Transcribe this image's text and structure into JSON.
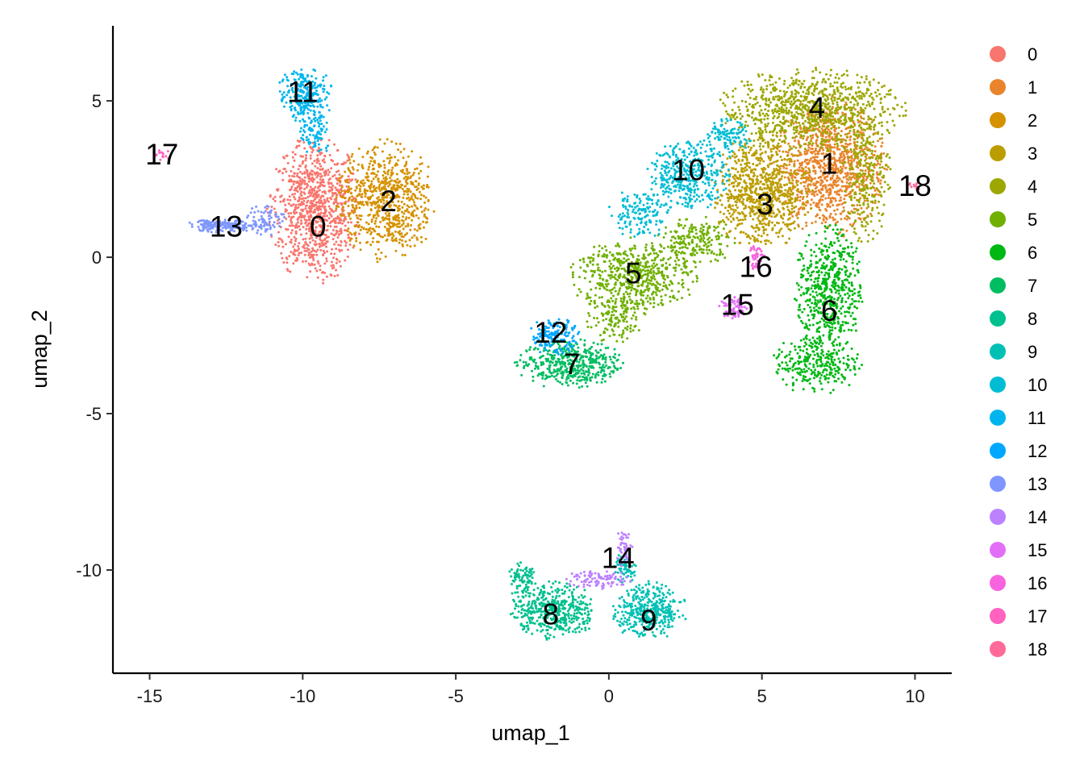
{
  "chart_data": {
    "type": "scatter",
    "xlabel": "umap_1",
    "ylabel": "umap_2",
    "xlim": [
      -16.2,
      11.2
    ],
    "ylim": [
      -13.3,
      7.4
    ],
    "x_ticks": [
      -15,
      -10,
      -5,
      0,
      5,
      10
    ],
    "x_tick_labels": [
      "-15",
      "-10",
      "-5",
      "0",
      "5",
      "10"
    ],
    "y_ticks": [
      5,
      0,
      -5,
      -10
    ],
    "y_tick_labels": [
      "5",
      "0",
      "-5",
      "-10"
    ],
    "grid": false,
    "legend_position": "right",
    "clusters": [
      {
        "name": "0",
        "color": "#F8766D",
        "label_x": -9.5,
        "label_y": 1.0,
        "blobs": [
          {
            "x": -9.6,
            "y": 1.5,
            "rx": 1.5,
            "ry": 2.3,
            "n": 900
          }
        ]
      },
      {
        "name": "1",
        "color": "#E9842C",
        "label_x": 7.2,
        "label_y": 3.0,
        "blobs": [
          {
            "x": 7.2,
            "y": 2.9,
            "rx": 1.8,
            "ry": 2.2,
            "n": 1000
          }
        ]
      },
      {
        "name": "2",
        "color": "#D69100",
        "label_x": -7.2,
        "label_y": 1.8,
        "blobs": [
          {
            "x": -7.3,
            "y": 1.8,
            "rx": 1.6,
            "ry": 1.9,
            "n": 700
          }
        ]
      },
      {
        "name": "3",
        "color": "#BC9D00",
        "label_x": 5.1,
        "label_y": 1.7,
        "blobs": [
          {
            "x": 5.0,
            "y": 2.1,
            "rx": 1.6,
            "ry": 1.8,
            "n": 800
          }
        ]
      },
      {
        "name": "4",
        "color": "#9CA700",
        "label_x": 6.8,
        "label_y": 4.8,
        "blobs": [
          {
            "x": 6.6,
            "y": 4.7,
            "rx": 3.0,
            "ry": 1.3,
            "n": 900
          },
          {
            "x": 8.4,
            "y": 2.5,
            "rx": 0.8,
            "ry": 2.0,
            "n": 250
          }
        ]
      },
      {
        "name": "5",
        "color": "#6FB000",
        "label_x": 0.8,
        "label_y": -0.5,
        "blobs": [
          {
            "x": 0.8,
            "y": -0.6,
            "rx": 2.0,
            "ry": 1.2,
            "n": 550
          },
          {
            "x": 2.8,
            "y": 0.5,
            "rx": 1.3,
            "ry": 0.8,
            "n": 200
          },
          {
            "x": 0.2,
            "y": -2.0,
            "rx": 1.0,
            "ry": 0.7,
            "n": 120
          }
        ]
      },
      {
        "name": "6",
        "color": "#00B813",
        "label_x": 7.2,
        "label_y": -1.7,
        "blobs": [
          {
            "x": 7.2,
            "y": -1.0,
            "rx": 1.1,
            "ry": 2.0,
            "n": 550
          },
          {
            "x": 6.8,
            "y": -3.4,
            "rx": 1.4,
            "ry": 1.0,
            "n": 300
          }
        ]
      },
      {
        "name": "7",
        "color": "#00BD61",
        "label_x": -1.2,
        "label_y": -3.4,
        "blobs": [
          {
            "x": -1.3,
            "y": -3.4,
            "rx": 1.7,
            "ry": 0.8,
            "n": 450
          }
        ]
      },
      {
        "name": "8",
        "color": "#00C08E",
        "label_x": -1.9,
        "label_y": -11.4,
        "blobs": [
          {
            "x": -1.8,
            "y": -11.3,
            "rx": 1.4,
            "ry": 0.9,
            "n": 450
          },
          {
            "x": -2.8,
            "y": -10.3,
            "rx": 0.5,
            "ry": 0.6,
            "n": 80
          }
        ]
      },
      {
        "name": "9",
        "color": "#00C0B4",
        "label_x": 1.3,
        "label_y": -11.6,
        "blobs": [
          {
            "x": 1.3,
            "y": -11.3,
            "rx": 1.2,
            "ry": 0.9,
            "n": 400
          },
          {
            "x": 0.5,
            "y": -10.0,
            "rx": 0.4,
            "ry": 0.6,
            "n": 60
          }
        ]
      },
      {
        "name": "10",
        "color": "#00BDD4",
        "label_x": 2.6,
        "label_y": 2.8,
        "blobs": [
          {
            "x": 2.6,
            "y": 2.6,
            "rx": 1.3,
            "ry": 1.1,
            "n": 380
          },
          {
            "x": 1.0,
            "y": 1.4,
            "rx": 1.0,
            "ry": 0.8,
            "n": 150
          },
          {
            "x": 3.8,
            "y": 3.8,
            "rx": 0.8,
            "ry": 0.6,
            "n": 120
          }
        ]
      },
      {
        "name": "11",
        "color": "#00B5EE",
        "label_x": -10.0,
        "label_y": 5.3,
        "blobs": [
          {
            "x": -9.9,
            "y": 5.2,
            "rx": 0.9,
            "ry": 0.9,
            "n": 260
          },
          {
            "x": -9.6,
            "y": 3.9,
            "rx": 0.5,
            "ry": 0.7,
            "n": 80
          }
        ]
      },
      {
        "name": "12",
        "color": "#00A7FF",
        "label_x": -1.9,
        "label_y": -2.4,
        "blobs": [
          {
            "x": -1.8,
            "y": -2.5,
            "rx": 0.8,
            "ry": 0.6,
            "n": 160
          }
        ]
      },
      {
        "name": "13",
        "color": "#7F96FF",
        "label_x": -12.5,
        "label_y": 1.0,
        "blobs": [
          {
            "x": -12.6,
            "y": 1.0,
            "rx": 1.2,
            "ry": 0.2,
            "n": 200
          },
          {
            "x": -11.2,
            "y": 1.2,
            "rx": 0.6,
            "ry": 0.5,
            "n": 80
          }
        ]
      },
      {
        "name": "14",
        "color": "#BC81FF",
        "label_x": 0.3,
        "label_y": -9.6,
        "blobs": [
          {
            "x": -0.3,
            "y": -10.3,
            "rx": 1.1,
            "ry": 0.3,
            "n": 100
          },
          {
            "x": 0.5,
            "y": -9.3,
            "rx": 0.3,
            "ry": 0.6,
            "n": 50
          }
        ]
      },
      {
        "name": "15",
        "color": "#E26EF7",
        "label_x": 4.2,
        "label_y": -1.5,
        "blobs": [
          {
            "x": 4.1,
            "y": -1.6,
            "rx": 0.5,
            "ry": 0.4,
            "n": 70
          }
        ]
      },
      {
        "name": "16",
        "color": "#F863DF",
        "label_x": 4.8,
        "label_y": -0.3,
        "blobs": [
          {
            "x": 4.8,
            "y": 0.0,
            "rx": 0.3,
            "ry": 0.4,
            "n": 45
          }
        ]
      },
      {
        "name": "17",
        "color": "#FF62BF",
        "label_x": -14.6,
        "label_y": 3.3,
        "blobs": [
          {
            "x": -14.6,
            "y": 3.3,
            "rx": 0.35,
            "ry": 0.2,
            "n": 14
          }
        ]
      },
      {
        "name": "18",
        "color": "#FF6A98",
        "label_x": 10.0,
        "label_y": 2.3,
        "blobs": [
          {
            "x": 10.0,
            "y": 2.3,
            "rx": 0.25,
            "ry": 0.15,
            "n": 10
          }
        ]
      }
    ]
  }
}
